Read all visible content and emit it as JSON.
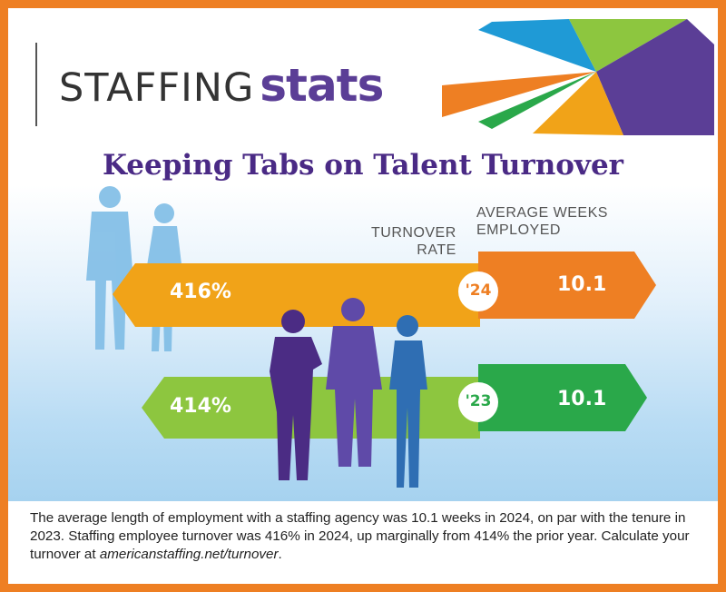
{
  "brand": {
    "part1": "STAFFING",
    "part2": "stats"
  },
  "colors": {
    "orange": "#ee7f23",
    "amber": "#f1a318",
    "green": "#8dc63f",
    "dark_green": "#2aa84a",
    "purple": "#5b3e96",
    "blue": "#1f9ad6",
    "title_purple": "#4a2a85"
  },
  "chart_data": {
    "type": "bar",
    "title": "Keeping Tabs on Talent Turnover",
    "categories": [
      "'24",
      "'23"
    ],
    "series": [
      {
        "name": "TURNOVER RATE",
        "values": [
          416,
          414
        ],
        "labels": [
          "416%",
          "414%"
        ]
      },
      {
        "name": "AVERAGE WEEKS EMPLOYED",
        "values": [
          10.1,
          10.1
        ],
        "labels": [
          "10.1",
          "10.1"
        ]
      }
    ],
    "headers": {
      "rate": [
        "TURNOVER",
        "RATE"
      ],
      "weeks": [
        "AVERAGE WEEKS",
        "EMPLOYED"
      ]
    }
  },
  "caption": {
    "text": "The average length of employment with a staffing agency was 10.1 weeks in 2024, on par with the tenure in 2023. Staffing employee turnover was 416% in 2024, up marginally from 414% the prior year. Calculate your turnover at ",
    "link": "americanstaffing.net/turnover",
    "end": "."
  }
}
